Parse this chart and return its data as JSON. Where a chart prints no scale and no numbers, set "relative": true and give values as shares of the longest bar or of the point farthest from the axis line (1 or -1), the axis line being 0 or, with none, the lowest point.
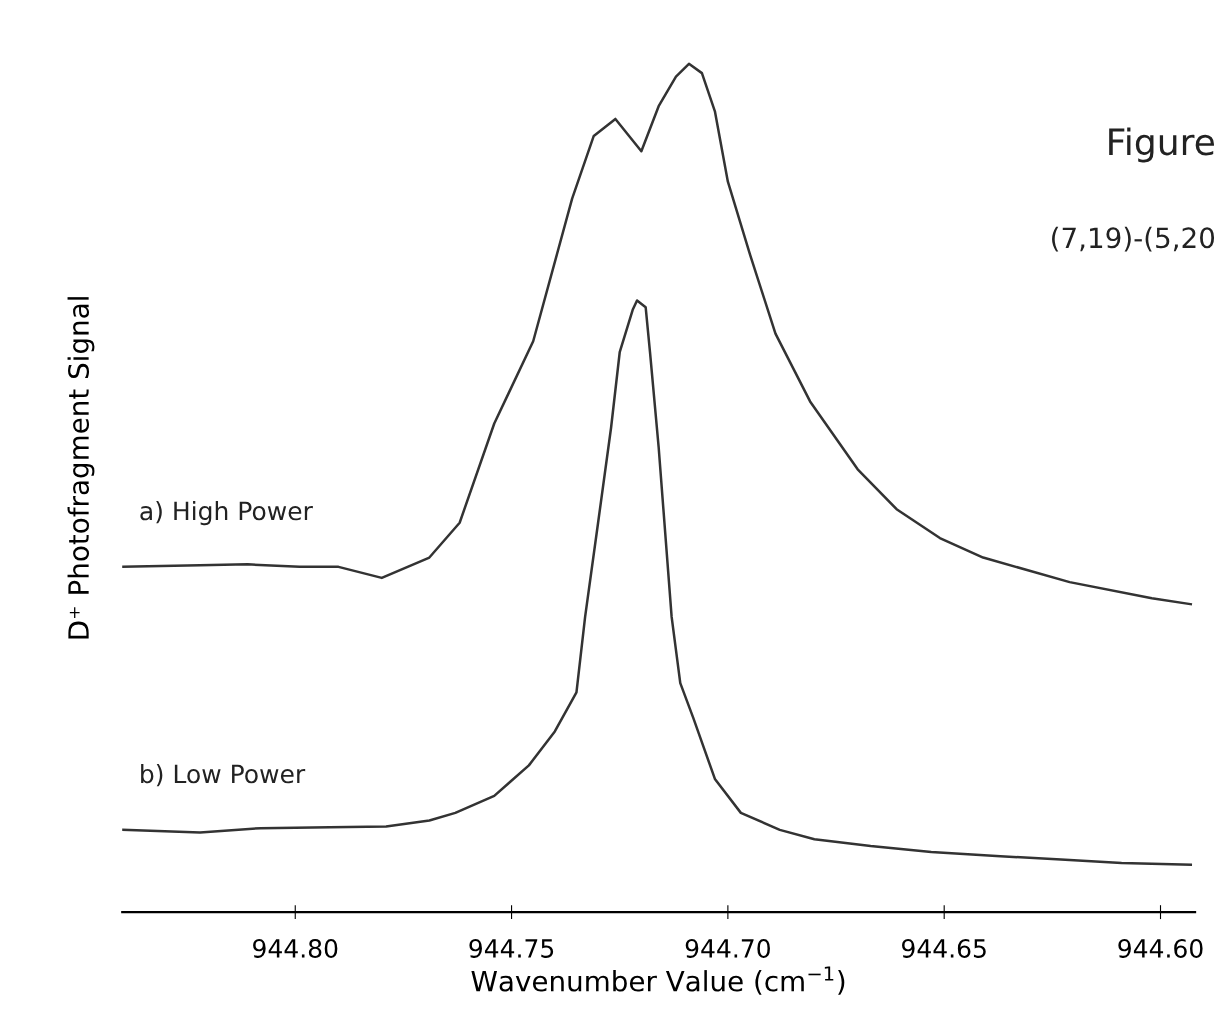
{
  "chart_data": {
    "type": "line",
    "relative": true,
    "xlabel": "Wavenumber Value (cm$^{−1}$)",
    "ylabel": "D⁺ Photofragment Signal",
    "annotations": [
      "Figure",
      "(7,19)-(5,20"
    ],
    "xlim": [
      944.84,
      944.592
    ],
    "xticks": [
      {
        "value": 944.8,
        "label": "944.80"
      },
      {
        "value": 944.75,
        "label": "944.75"
      },
      {
        "value": 944.7,
        "label": "944.70"
      },
      {
        "value": 944.65,
        "label": "944.65"
      },
      {
        "value": 944.6,
        "label": "944.60"
      }
    ],
    "grid": false,
    "legend": false,
    "line_style": "solid",
    "marker": "none",
    "series": [
      {
        "name": "a) High Power",
        "color": "#333333",
        "x": [
          944.84,
          944.822,
          944.811,
          944.799,
          944.79,
          944.78,
          944.769,
          944.762,
          944.754,
          944.745,
          944.736,
          944.731,
          944.726,
          944.72,
          944.716,
          944.712,
          944.709,
          944.706,
          944.703,
          944.7,
          944.695,
          944.689,
          944.681,
          944.67,
          944.661,
          944.651,
          944.641,
          944.621,
          944.602,
          944.593
        ],
        "values": [
          0.407,
          0.409,
          0.41,
          0.407,
          0.407,
          0.394,
          0.418,
          0.459,
          0.576,
          0.673,
          0.841,
          0.915,
          0.935,
          0.897,
          0.95,
          0.985,
          1.0,
          0.989,
          0.944,
          0.861,
          0.777,
          0.682,
          0.602,
          0.522,
          0.475,
          0.441,
          0.418,
          0.389,
          0.37,
          0.363
        ]
      },
      {
        "name": "b) Low Power",
        "color": "#333333",
        "x": [
          944.84,
          944.822,
          944.808,
          944.792,
          944.779,
          944.769,
          944.763,
          944.754,
          944.746,
          944.74,
          944.735,
          944.733,
          944.73,
          944.727,
          944.725,
          944.722,
          944.721,
          944.719,
          944.718,
          944.716,
          944.713,
          944.711,
          944.708,
          944.703,
          944.697,
          944.688,
          944.68,
          944.667,
          944.653,
          944.637,
          944.623,
          944.609,
          944.593
        ],
        "values": [
          0.097,
          0.094,
          0.099,
          0.1,
          0.101,
          0.108,
          0.117,
          0.137,
          0.173,
          0.213,
          0.259,
          0.348,
          0.459,
          0.571,
          0.66,
          0.71,
          0.721,
          0.713,
          0.66,
          0.548,
          0.348,
          0.27,
          0.229,
          0.157,
          0.117,
          0.097,
          0.086,
          0.078,
          0.071,
          0.066,
          0.062,
          0.058,
          0.056
        ]
      }
    ]
  }
}
